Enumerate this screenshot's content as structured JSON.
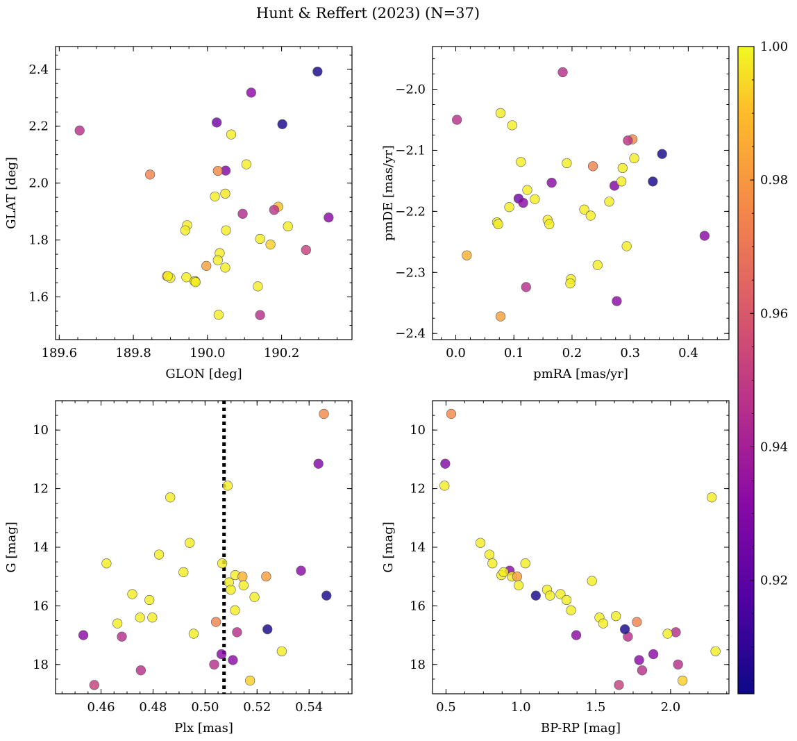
{
  "chart_data": {
    "type": "scatter",
    "title": "Hunt & Reffert (2023) (N=37)",
    "colorbar": {
      "cmap": "plasma",
      "vmin": 0.903,
      "vmax": 1.0,
      "ticks": [
        0.92,
        0.94,
        0.96,
        0.98,
        1.0
      ],
      "tick_labels": [
        "0.92",
        "0.94",
        "0.96",
        "0.98",
        "1.00"
      ]
    },
    "panels": [
      {
        "id": "glon-glat",
        "xlabel": "GLON [deg]",
        "ylabel": "GLAT [deg]",
        "xlim": [
          189.59,
          190.39
        ],
        "ylim": [
          1.45,
          2.48
        ],
        "xticks": [
          189.6,
          189.8,
          190.0,
          190.2
        ],
        "xtick_labels": [
          "189.6",
          "189.8",
          "190.0",
          "190.2"
        ],
        "yticks": [
          1.6,
          1.8,
          2.0,
          2.2,
          2.4
        ],
        "ytick_labels": [
          "1.6",
          "1.8",
          "2.0",
          "2.2",
          "2.4"
        ],
        "x": [
          189.655,
          190.297,
          190.118,
          190.025,
          190.202,
          190.064,
          190.049,
          190.105,
          189.845,
          190.028,
          190.02,
          190.048,
          190.095,
          190.191,
          190.18,
          189.945,
          190.327,
          190.217,
          189.94,
          190.05,
          190.142,
          190.17,
          190.266,
          190.033,
          190.028,
          190.048,
          189.997,
          189.891,
          189.9,
          189.943,
          189.967,
          189.893,
          190.136,
          190.03,
          190.142,
          189.965,
          189.968
        ],
        "y": [
          2.185,
          2.392,
          2.318,
          2.213,
          2.207,
          2.171,
          2.044,
          2.066,
          2.03,
          2.043,
          1.953,
          1.963,
          1.892,
          1.917,
          1.906,
          1.852,
          1.879,
          1.848,
          1.834,
          1.834,
          1.804,
          1.784,
          1.765,
          1.754,
          1.729,
          1.703,
          1.709,
          1.673,
          1.667,
          1.669,
          1.655,
          1.673,
          1.637,
          1.537,
          1.536,
          1.655,
          1.652
        ],
        "c": [
          0.946,
          0.905,
          0.932,
          0.925,
          0.905,
          0.998,
          0.93,
          0.998,
          0.974,
          0.976,
          0.998,
          0.997,
          0.944,
          0.99,
          0.948,
          0.998,
          0.932,
          0.998,
          0.998,
          0.998,
          0.998,
          0.993,
          0.952,
          0.998,
          0.998,
          0.998,
          0.982,
          0.987,
          0.998,
          0.998,
          0.998,
          0.998,
          0.998,
          0.998,
          0.946,
          0.998,
          0.998
        ]
      },
      {
        "id": "pmra-pmde",
        "xlabel": "pmRA [mas/yr]",
        "ylabel": "pmDE [mas/yr]",
        "xlim": [
          -0.04,
          0.47
        ],
        "ylim": [
          -2.41,
          -1.93
        ],
        "xticks": [
          0.0,
          0.1,
          0.2,
          0.3,
          0.4
        ],
        "xtick_labels": [
          "0.0",
          "0.1",
          "0.2",
          "0.3",
          "0.4"
        ],
        "yticks": [
          -2.4,
          -2.3,
          -2.2,
          -2.1,
          -2.0
        ],
        "ytick_labels": [
          "−2.4",
          "−2.3",
          "−2.2",
          "−2.1",
          "−2.0"
        ],
        "x": [
          0.184,
          0.002,
          0.077,
          0.097,
          0.304,
          0.296,
          0.355,
          0.307,
          0.112,
          0.191,
          0.236,
          0.287,
          0.339,
          0.165,
          0.273,
          0.123,
          0.108,
          0.136,
          0.285,
          0.116,
          0.264,
          0.092,
          0.221,
          0.232,
          0.158,
          0.071,
          0.161,
          0.073,
          0.294,
          0.019,
          0.244,
          0.428,
          0.198,
          0.197,
          0.121,
          0.277,
          0.077
        ],
        "y": [
          -1.972,
          -2.05,
          -2.039,
          -2.059,
          -2.082,
          -2.084,
          -2.106,
          -2.113,
          -2.119,
          -2.121,
          -2.126,
          -2.129,
          -2.151,
          -2.153,
          -2.158,
          -2.165,
          -2.179,
          -2.18,
          -2.151,
          -2.186,
          -2.184,
          -2.193,
          -2.197,
          -2.207,
          -2.214,
          -2.218,
          -2.221,
          -2.221,
          -2.257,
          -2.272,
          -2.288,
          -2.24,
          -2.311,
          -2.318,
          -2.324,
          -2.347,
          -2.372
        ],
        "c": [
          0.946,
          0.946,
          0.998,
          0.998,
          0.976,
          0.948,
          0.905,
          0.998,
          0.998,
          0.998,
          0.974,
          0.998,
          0.905,
          0.932,
          0.93,
          0.998,
          0.925,
          0.998,
          0.998,
          0.932,
          0.998,
          0.998,
          0.998,
          0.998,
          0.998,
          0.998,
          0.998,
          0.998,
          0.998,
          0.987,
          0.998,
          0.932,
          0.998,
          0.998,
          0.946,
          0.932,
          0.982
        ]
      },
      {
        "id": "plx-g",
        "xlabel": "Plx [mas]",
        "ylabel": "G [mag]",
        "xlim": [
          0.4425,
          0.5565
        ],
        "ylim": [
          19.0,
          9.0
        ],
        "xticks": [
          0.46,
          0.48,
          0.5,
          0.52,
          0.54
        ],
        "xtick_labels": [
          "0.46",
          "0.48",
          "0.50",
          "0.52",
          "0.54"
        ],
        "yticks": [
          10,
          12,
          14,
          16,
          18
        ],
        "ytick_labels": [
          "10",
          "12",
          "14",
          "16",
          "18"
        ],
        "vline": {
          "x": 0.5073,
          "style": "dotted"
        },
        "x": [
          0.5457,
          0.5436,
          0.5087,
          0.4866,
          0.4941,
          0.4823,
          0.4621,
          0.4917,
          0.5066,
          0.5116,
          0.5144,
          0.5235,
          0.5092,
          0.5369,
          0.5148,
          0.5099,
          0.519,
          0.5467,
          0.472,
          0.4786,
          0.4663,
          0.475,
          0.4797,
          0.5115,
          0.5042,
          0.4956,
          0.524,
          0.5295,
          0.4532,
          0.468,
          0.5123,
          0.5063,
          0.5107,
          0.5035,
          0.4753,
          0.5173,
          0.4574
        ],
        "y": [
          9.45,
          11.15,
          11.9,
          12.3,
          13.85,
          14.25,
          14.55,
          14.85,
          14.55,
          14.95,
          15.0,
          15.0,
          15.2,
          14.8,
          15.3,
          15.45,
          15.7,
          15.65,
          15.6,
          15.8,
          16.6,
          16.4,
          16.4,
          16.15,
          16.55,
          16.95,
          16.8,
          17.55,
          17.0,
          17.05,
          16.9,
          17.65,
          17.85,
          18.0,
          18.2,
          18.55,
          18.7
        ],
        "c": [
          0.976,
          0.93,
          0.998,
          0.998,
          0.998,
          0.998,
          0.998,
          0.998,
          0.998,
          0.998,
          0.987,
          0.982,
          0.998,
          0.932,
          0.998,
          0.998,
          0.998,
          0.905,
          0.998,
          0.998,
          0.998,
          0.998,
          0.998,
          0.998,
          0.974,
          0.998,
          0.905,
          0.998,
          0.932,
          0.946,
          0.946,
          0.932,
          0.932,
          0.946,
          0.946,
          0.993,
          0.952
        ]
      },
      {
        "id": "bprp-g",
        "xlabel": "BP-RP [mag]",
        "ylabel": "G [mag]",
        "xlim": [
          0.41,
          2.39
        ],
        "ylim": [
          19.0,
          9.0
        ],
        "xticks": [
          0.5,
          1.0,
          1.5,
          2.0
        ],
        "xtick_labels": [
          "0.5",
          "1.0",
          "1.5",
          "2.0"
        ],
        "yticks": [
          10,
          12,
          14,
          16,
          18
        ],
        "ytick_labels": [
          "10",
          "12",
          "14",
          "16",
          "18"
        ],
        "x": [
          0.535,
          0.495,
          0.49,
          2.275,
          0.73,
          0.79,
          0.81,
          0.925,
          1.03,
          0.87,
          0.885,
          0.94,
          0.975,
          0.985,
          1.265,
          1.475,
          1.175,
          1.195,
          1.1,
          1.305,
          1.335,
          1.525,
          1.55,
          1.635,
          1.775,
          1.715,
          1.695,
          2.035,
          1.98,
          2.3,
          1.37,
          1.885,
          1.79,
          2.05,
          1.81,
          2.08,
          1.655
        ],
        "y": [
          9.45,
          11.15,
          11.9,
          12.3,
          13.85,
          14.25,
          14.55,
          14.8,
          14.55,
          14.95,
          14.85,
          15.0,
          15.0,
          15.3,
          15.6,
          15.15,
          15.45,
          15.65,
          15.65,
          15.8,
          16.15,
          16.4,
          16.6,
          16.35,
          16.55,
          17.05,
          16.8,
          16.9,
          16.95,
          17.55,
          17.0,
          17.65,
          17.85,
          18.0,
          18.2,
          18.55,
          18.7
        ],
        "c": [
          0.976,
          0.93,
          0.998,
          0.998,
          0.998,
          0.998,
          0.998,
          0.932,
          0.998,
          0.998,
          0.998,
          0.998,
          0.982,
          0.998,
          0.998,
          0.998,
          0.998,
          0.998,
          0.905,
          0.998,
          0.998,
          0.998,
          0.998,
          0.998,
          0.974,
          0.946,
          0.905,
          0.946,
          0.998,
          0.998,
          0.932,
          0.932,
          0.932,
          0.946,
          0.946,
          0.993,
          0.952
        ]
      }
    ]
  }
}
